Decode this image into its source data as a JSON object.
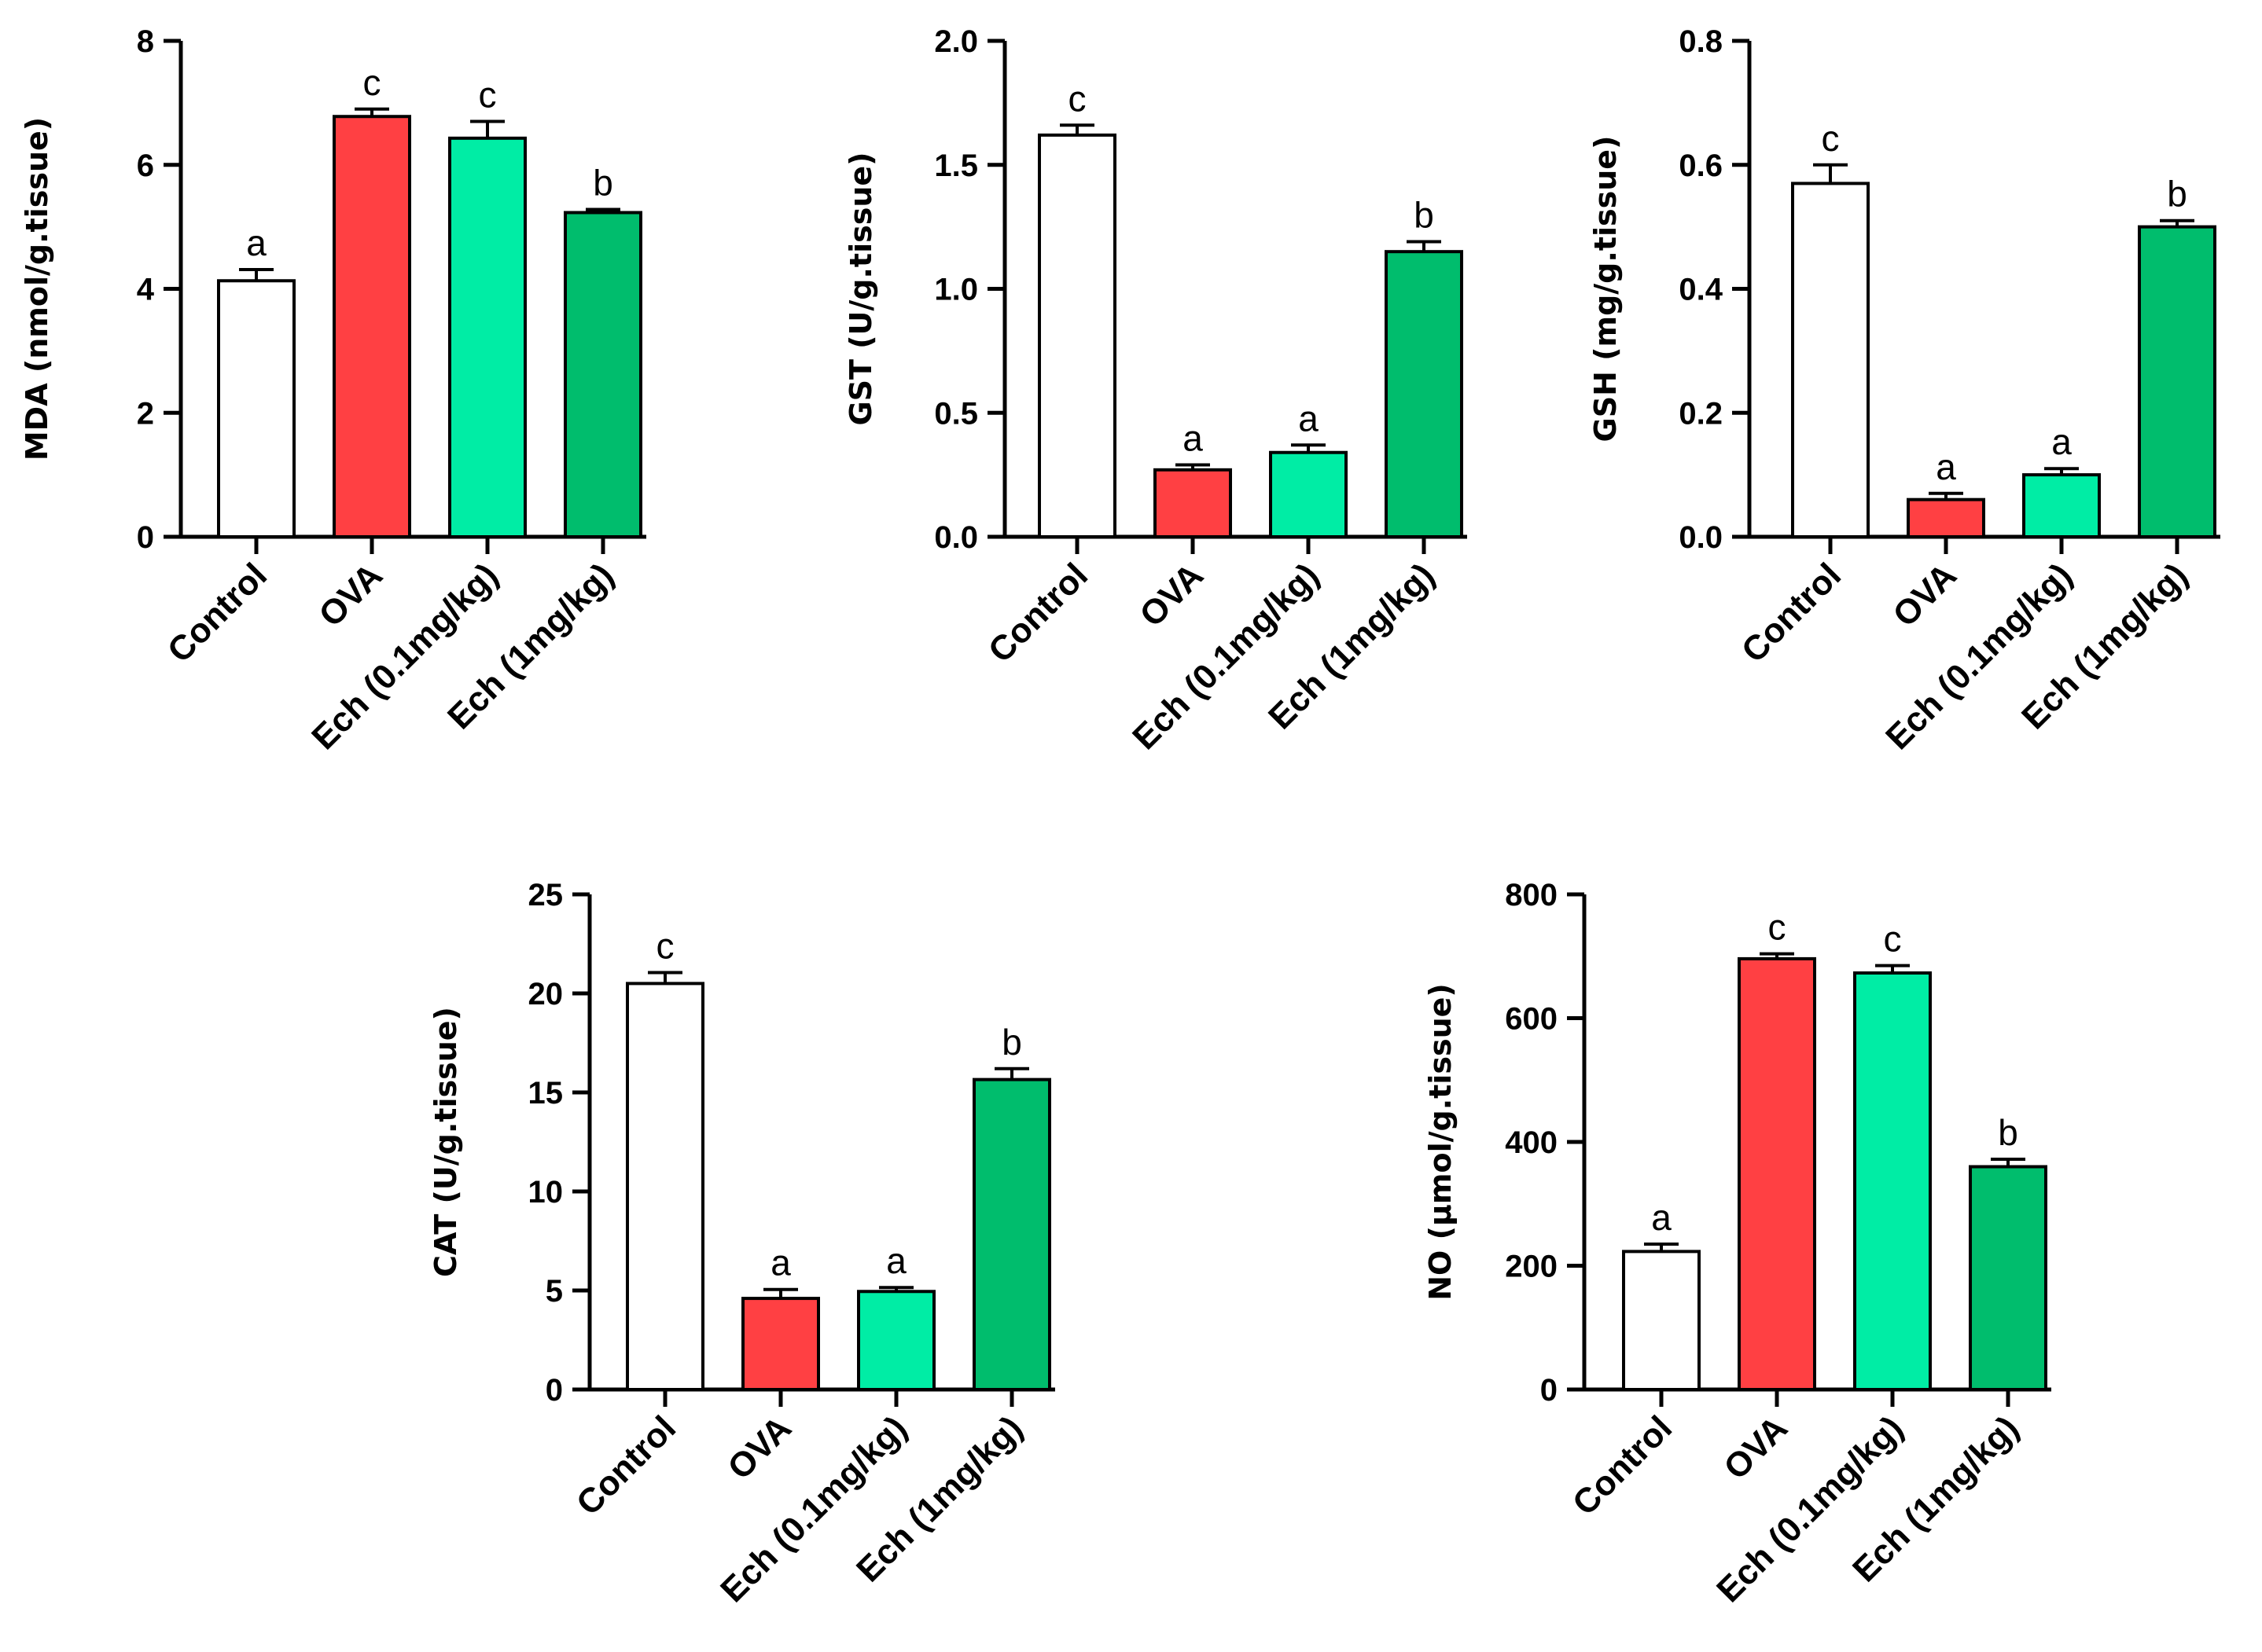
{
  "colors": {
    "Control": "#ffffff",
    "OVA": "#ff4043",
    "Ech (0.1mg/kg)": "#00eda5",
    "Ech (1mg/kg)": "#00bd6d"
  },
  "chart_data": [
    {
      "type": "bar",
      "ylabel": "MDA (nmol/g.tissue)",
      "categories": [
        "Control",
        "OVA",
        "Ech (0.1mg/kg)",
        "Ech (1mg/kg)"
      ],
      "values": [
        4.13,
        6.78,
        6.43,
        5.23
      ],
      "errors": [
        0.18,
        0.12,
        0.27,
        0.05
      ],
      "significance": [
        "a",
        "c",
        "c",
        "b"
      ],
      "ylim": [
        0,
        8
      ],
      "yticks": [
        0,
        2,
        4,
        6,
        8
      ],
      "ytick_labels": [
        "0",
        "2",
        "4",
        "6",
        "8"
      ]
    },
    {
      "type": "bar",
      "ylabel": "GST (U/g.tissue)",
      "categories": [
        "Control",
        "OVA",
        "Ech (0.1mg/kg)",
        "Ech (1mg/kg)"
      ],
      "values": [
        1.62,
        0.27,
        0.34,
        1.15
      ],
      "errors": [
        0.04,
        0.02,
        0.03,
        0.04
      ],
      "significance": [
        "c",
        "a",
        "a",
        "b"
      ],
      "ylim": [
        0,
        2.0
      ],
      "yticks": [
        0,
        0.5,
        1.0,
        1.5,
        2.0
      ],
      "ytick_labels": [
        "0.0",
        "0.5",
        "1.0",
        "1.5",
        "2.0"
      ]
    },
    {
      "type": "bar",
      "ylabel": "GSH (mg/g.tissue)",
      "categories": [
        "Control",
        "OVA",
        "Ech (0.1mg/kg)",
        "Ech (1mg/kg)"
      ],
      "values": [
        0.57,
        0.06,
        0.1,
        0.5
      ],
      "errors": [
        0.03,
        0.01,
        0.01,
        0.01
      ],
      "significance": [
        "c",
        "a",
        "a",
        "b"
      ],
      "ylim": [
        0,
        0.8
      ],
      "yticks": [
        0,
        0.2,
        0.4,
        0.6,
        0.8
      ],
      "ytick_labels": [
        "0.0",
        "0.2",
        "0.4",
        "0.6",
        "0.8"
      ]
    },
    {
      "type": "bar",
      "ylabel": "CAT (U/g.tissue)",
      "categories": [
        "Control",
        "OVA",
        "Ech (0.1mg/kg)",
        "Ech (1mg/kg)"
      ],
      "values": [
        20.5,
        4.6,
        4.95,
        15.65
      ],
      "errors": [
        0.55,
        0.45,
        0.2,
        0.55
      ],
      "significance": [
        "c",
        "a",
        "a",
        "b"
      ],
      "ylim": [
        0,
        25
      ],
      "yticks": [
        0,
        5,
        10,
        15,
        20,
        25
      ],
      "ytick_labels": [
        "0",
        "5",
        "10",
        "15",
        "20",
        "25"
      ]
    },
    {
      "type": "bar",
      "ylabel": "NO (µmol/g.tissue)",
      "categories": [
        "Control",
        "OVA",
        "Ech (0.1mg/kg)",
        "Ech (1mg/kg)"
      ],
      "values": [
        223,
        696,
        673,
        360
      ],
      "errors": [
        12,
        8,
        12,
        12
      ],
      "significance": [
        "a",
        "c",
        "c",
        "b"
      ],
      "ylim": [
        0,
        800
      ],
      "yticks": [
        0,
        200,
        400,
        600,
        800
      ],
      "ytick_labels": [
        "0",
        "200",
        "400",
        "600",
        "800"
      ]
    }
  ]
}
